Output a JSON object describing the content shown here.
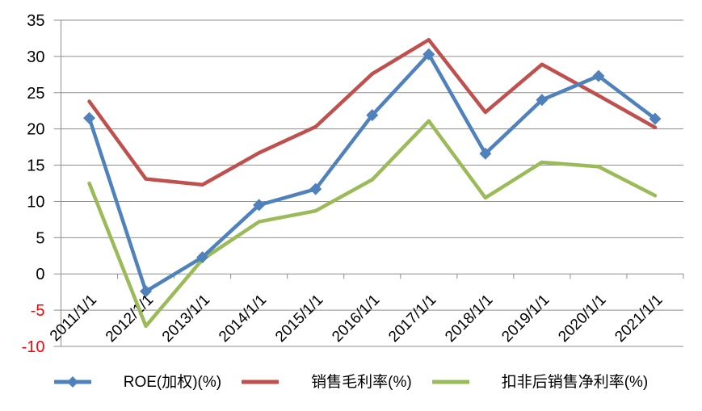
{
  "chart_data": {
    "type": "line",
    "title": "",
    "xlabel": "",
    "ylabel": "",
    "categories": [
      "2011/1/1",
      "2012/1/1",
      "2013/1/1",
      "2014/1/1",
      "2015/1/1",
      "2016/1/1",
      "2017/1/1",
      "2018/1/1",
      "2019/1/1",
      "2020/1/1",
      "2021/1/1"
    ],
    "series": [
      {
        "name": "ROE(加权)(%)",
        "color": "#4F81BD",
        "marker": "diamond",
        "values": [
          21.5,
          -2.4,
          2.3,
          9.5,
          11.7,
          21.9,
          30.3,
          16.6,
          24.0,
          27.3,
          21.4
        ]
      },
      {
        "name": "销售毛利率(%)",
        "color": "#C0504D",
        "marker": "none",
        "values": [
          23.8,
          13.1,
          12.3,
          16.7,
          20.3,
          27.6,
          32.3,
          22.3,
          28.9,
          24.6,
          20.2
        ]
      },
      {
        "name": "扣非后销售净利率(%)",
        "color": "#9BBB59",
        "marker": "none",
        "values": [
          12.5,
          -7.2,
          2.0,
          7.2,
          8.7,
          13.0,
          21.1,
          10.5,
          15.4,
          14.8,
          10.8
        ]
      }
    ],
    "ylim": [
      -10,
      35
    ],
    "ytick_step": 5,
    "ytick_labels": [
      "-10",
      "-5",
      "0",
      "5",
      "10",
      "15",
      "20",
      "25",
      "30",
      "35"
    ],
    "grid": "horizontal-only",
    "legend_position": "bottom-center",
    "colors": {
      "gridline": "#8E8E8E",
      "axis_line": "#8E8E8E",
      "tick_label": "#000000",
      "negative_tick_label": "#FF0000",
      "background": "#FFFFFF"
    }
  }
}
